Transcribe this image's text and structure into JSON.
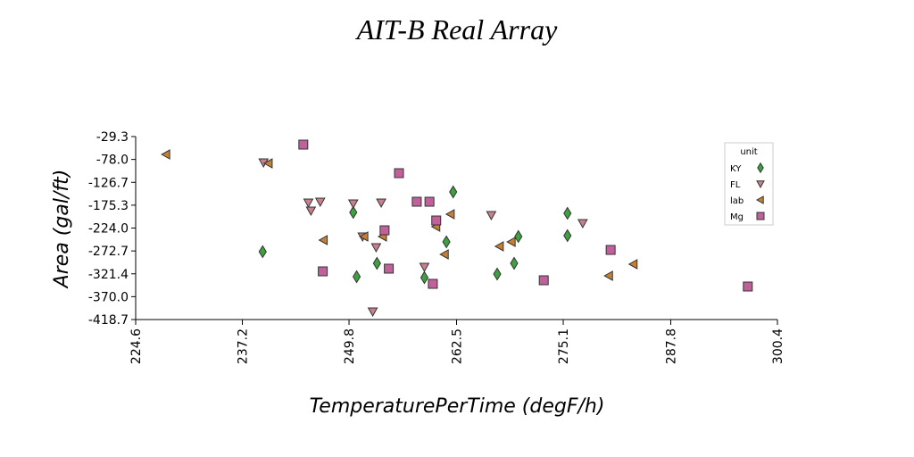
{
  "chart_data": {
    "type": "scatter",
    "title": "AIT-B Real Array",
    "xlabel": "TemperaturePerTime (degF/h)",
    "ylabel": "Area (gal/ft)",
    "xlim": [
      224.6,
      300.4
    ],
    "xticks": [
      224.6,
      237.2,
      249.8,
      262.5,
      275.1,
      287.8,
      300.4
    ],
    "ylim": [
      -418.7,
      -29.3
    ],
    "yticks": [
      -29.3,
      {
        "value": -78.0,
        "label": "-78.0"
      },
      -126.7,
      -175.3,
      {
        "value": -224.0,
        "label": "-224.0"
      },
      -272.7,
      -321.4,
      {
        "value": -370.0,
        "label": "-370.0"
      },
      -418.7
    ],
    "legend_title": "unit",
    "legend": "upper right",
    "series": [
      {
        "name": "KY",
        "color": "#3fa03f",
        "marker": "diamond",
        "x": [
          239.6,
          250.3,
          250.7,
          253.1,
          258.7,
          261.3,
          262.1,
          267.3,
          269.3,
          269.8,
          275.6,
          275.6
        ],
        "values": [
          -274.3,
          -190.7,
          -327.5,
          -299.0,
          -329.4,
          -253.4,
          -147.1,
          -321.8,
          -299.0,
          -242.0,
          -192.6,
          -240.1
        ]
      },
      {
        "name": "FL",
        "color": "#c9808e",
        "marker": "triangle-down",
        "x": [
          239.7,
          245.0,
          245.3,
          246.4,
          250.3,
          251.4,
          252.6,
          253.0,
          253.6,
          258.7,
          266.6,
          277.4
        ],
        "values": [
          -84.4,
          -169.8,
          -186.9,
          -168.0,
          -171.8,
          -242.0,
          -401.6,
          -264.8,
          -169.8,
          -306.6,
          -196.4,
          -213.5
        ]
      },
      {
        "name": "lab",
        "color": "#c58033",
        "marker": "triangle-left",
        "x": [
          228.2,
          240.3,
          246.8,
          251.6,
          253.8,
          260.1,
          261.1,
          261.8,
          267.6,
          269.0,
          280.5,
          283.4
        ],
        "values": [
          -67.3,
          -86.3,
          -249.6,
          -242.0,
          -242.0,
          -221.1,
          -280.0,
          -194.5,
          -262.9,
          -253.4,
          -325.6,
          -300.9
        ]
      },
      {
        "name": "Mg",
        "color": "#c0619c",
        "marker": "square",
        "x": [
          244.4,
          246.7,
          254.0,
          254.5,
          255.7,
          257.8,
          259.3,
          259.7,
          260.1,
          272.8,
          280.7,
          296.9
        ],
        "values": [
          -46.4,
          -316.1,
          -228.7,
          -310.4,
          -107.2,
          -168.0,
          -168.0,
          -342.7,
          -207.8,
          -335.1,
          -270.5,
          -348.4
        ]
      }
    ]
  }
}
